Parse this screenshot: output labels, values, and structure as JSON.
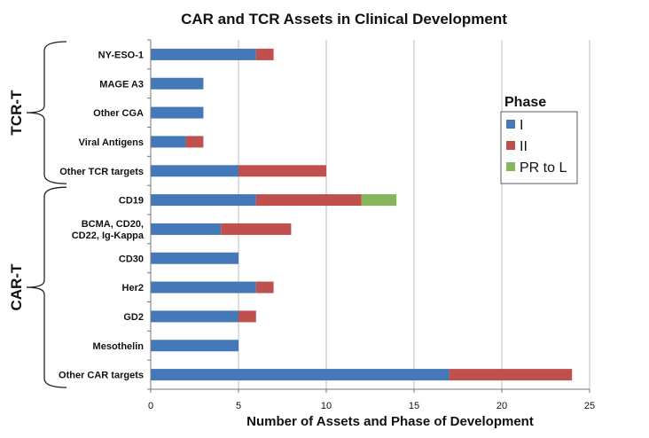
{
  "chart_data": {
    "type": "bar",
    "orientation": "horizontal",
    "stacked": true,
    "title": "CAR and TCR Assets in Clinical Development",
    "xlabel": "Number of Assets and Phase of Development",
    "ylabel": "",
    "xlim": [
      0,
      25
    ],
    "xticks": [
      0,
      5,
      10,
      15,
      20,
      25
    ],
    "grid": true,
    "legend": {
      "title": "Phase",
      "placement": "right"
    },
    "categories": [
      "NY-ESO-1",
      "MAGE A3",
      "Other CGA",
      "Viral Antigens",
      "Other TCR targets",
      "CD19",
      "BCMA, CD20, CD22, Ig-Kappa",
      "CD30",
      "Her2",
      "GD2",
      "Mesothelin",
      "Other CAR targets"
    ],
    "category_lines": [
      [
        "NY-ESO-1"
      ],
      [
        "MAGE A3"
      ],
      [
        "Other CGA"
      ],
      [
        "Viral Antigens"
      ],
      [
        "Other TCR targets"
      ],
      [
        "CD19"
      ],
      [
        "BCMA, CD20,",
        "CD22, Ig-Kappa"
      ],
      [
        "CD30"
      ],
      [
        "Her2"
      ],
      [
        "GD2"
      ],
      [
        "Mesothelin"
      ],
      [
        "Other CAR targets"
      ]
    ],
    "groups": [
      {
        "name": "TCR-T",
        "categories": [
          "NY-ESO-1",
          "MAGE A3",
          "Other CGA",
          "Viral Antigens",
          "Other TCR targets"
        ]
      },
      {
        "name": "CAR-T",
        "categories": [
          "CD19",
          "BCMA, CD20, CD22, Ig-Kappa",
          "CD30",
          "Her2",
          "GD2",
          "Mesothelin",
          "Other CAR targets"
        ]
      }
    ],
    "series": [
      {
        "name": "I",
        "color": "#4478b8",
        "values": [
          6,
          3,
          3,
          2,
          5,
          6,
          4,
          5,
          6,
          5,
          5,
          17
        ]
      },
      {
        "name": "II",
        "color": "#c0504d",
        "values": [
          1,
          0,
          0,
          1,
          5,
          6,
          4,
          0,
          1,
          1,
          0,
          7
        ]
      },
      {
        "name": "PR to L",
        "color": "#86b55b",
        "values": [
          0,
          0,
          0,
          0,
          0,
          2,
          0,
          0,
          0,
          0,
          0,
          0
        ]
      }
    ]
  }
}
